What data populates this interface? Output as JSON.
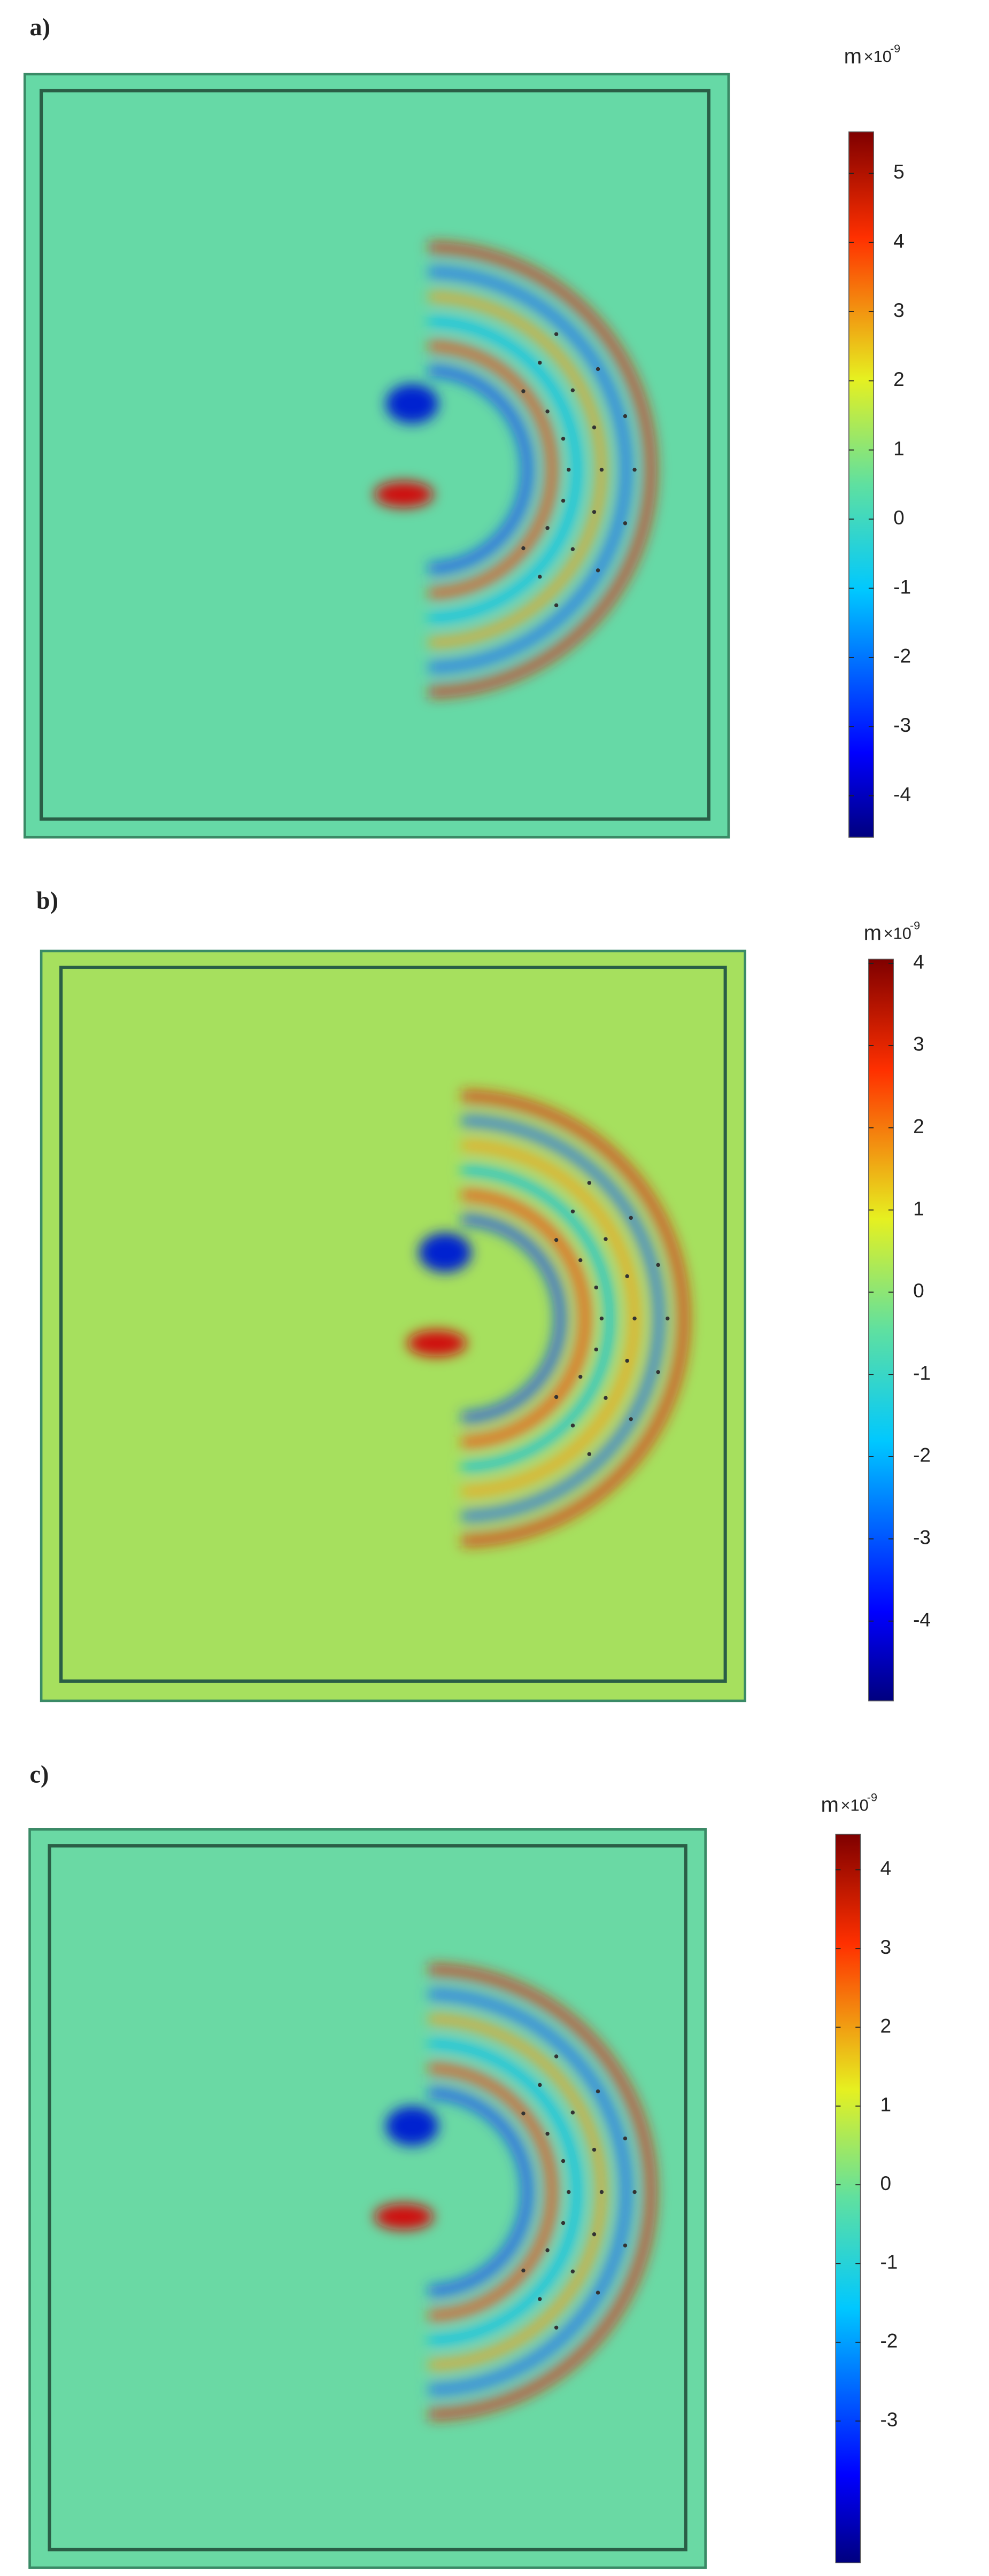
{
  "chart_data": [
    {
      "type": "heatmap",
      "label": "a)",
      "unit": "m",
      "scale": "×10",
      "exponent": "-9",
      "ylim": [
        -4.6,
        5.6
      ],
      "yticks": [
        -4,
        -3,
        -2,
        -1,
        0,
        1,
        2,
        3,
        4,
        5
      ]
    },
    {
      "type": "heatmap",
      "label": "b)",
      "unit": "m",
      "scale": "×10",
      "exponent": "-9",
      "ylim": [
        -4.97,
        4.05
      ],
      "yticks": [
        -4,
        -3,
        -2,
        -1,
        0,
        1,
        2,
        3,
        4
      ]
    },
    {
      "type": "heatmap",
      "label": "c)",
      "unit": "m",
      "scale": "×10",
      "exponent": "-9",
      "ylim": [
        -4.8,
        4.45
      ],
      "yticks": [
        -3,
        -2,
        -1,
        0,
        1,
        2,
        3,
        4
      ]
    }
  ]
}
